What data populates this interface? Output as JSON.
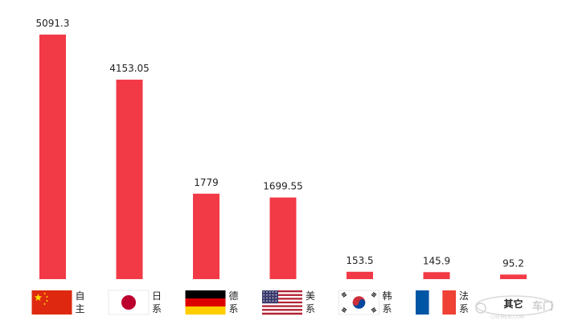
{
  "chart_data": {
    "type": "bar",
    "categories": [
      "自主",
      "日系",
      "德系",
      "美系",
      "韩系",
      "法系",
      "其它"
    ],
    "values": [
      5091.3,
      4153.05,
      1779,
      1699.55,
      153.5,
      145.9,
      95.2
    ],
    "value_labels": [
      "5091.3",
      "4153.05",
      "1779",
      "1699.55",
      "153.5",
      "145.9",
      "95.2"
    ],
    "flags": [
      "china-flag",
      "japan-flag",
      "germany-flag",
      "usa-flag",
      "korea-flag",
      "france-flag",
      ""
    ],
    "ylim": [
      0,
      5091.3
    ],
    "grid": false,
    "legend": "none",
    "colors": {
      "bar": "#f23a47"
    }
  },
  "watermark": {
    "text": "车门",
    "sub": "CHEMEN.COM"
  }
}
